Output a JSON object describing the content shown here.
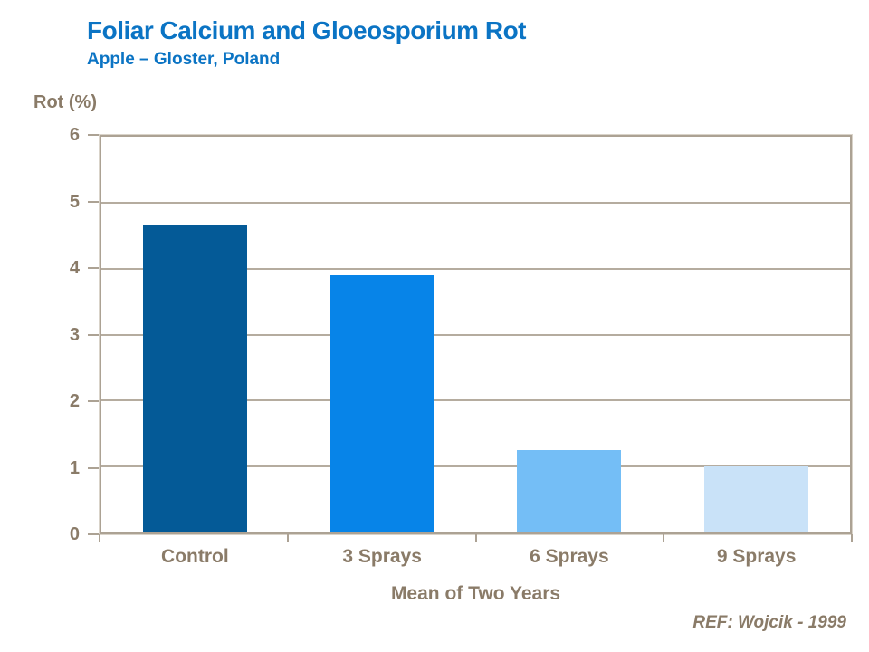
{
  "header": {
    "title": "Foliar Calcium and Gloeosporium Rot",
    "subtitle": "Apple – Gloster, Poland",
    "title_color": "#0b74c4"
  },
  "footer": {
    "reference": "REF: Wojcik - 1999"
  },
  "chart_data": {
    "type": "bar",
    "title": "Foliar Calcium and Gloeosporium Rot",
    "subtitle": "Apple – Gloster, Poland",
    "categories": [
      "Control",
      "3 Sprays",
      "6 Sprays",
      "9 Sprays"
    ],
    "values": [
      4.65,
      3.9,
      1.25,
      1.0
    ],
    "bar_colors": [
      "#045a97",
      "#0784e8",
      "#74bef6",
      "#c9e2f8"
    ],
    "ylabel": "Rot (%)",
    "xlabel": "Mean of Two Years",
    "ylim": [
      0,
      6
    ],
    "yticks": [
      0,
      1,
      2,
      3,
      4,
      5,
      6
    ],
    "grid": "horizontal",
    "legend": "none",
    "grid_color": "#b5ac9f",
    "axis_color": "#aca294",
    "label_color": "#8a7b68"
  }
}
